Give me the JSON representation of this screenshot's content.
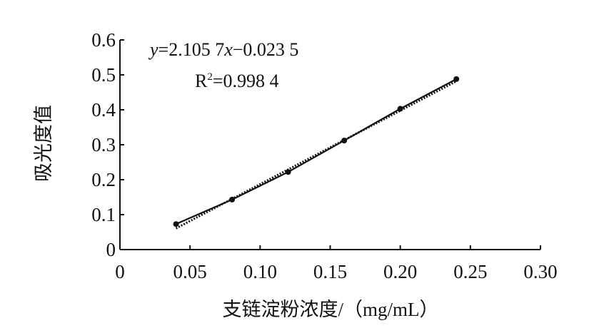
{
  "chart_data": {
    "type": "scatter",
    "title": "",
    "xlabel": "支链淀粉浓度/（mg/mL）",
    "ylabel": "吸光度值",
    "xlim": [
      0,
      0.3
    ],
    "ylim": [
      0,
      0.6
    ],
    "x_ticks": [
      "0",
      "0.05",
      "0.10",
      "0.15",
      "0.20",
      "0.25",
      "0.30"
    ],
    "y_ticks": [
      "0",
      "0.1",
      "0.2",
      "0.3",
      "0.4",
      "0.5",
      "0.6"
    ],
    "grid": false,
    "legend": "none",
    "series": [
      {
        "x": [
          0.04,
          0.08,
          0.12,
          0.16,
          0.2,
          0.24
        ],
        "y": [
          0.073,
          0.143,
          0.222,
          0.312,
          0.403,
          0.488
        ],
        "marker": "circle",
        "line": "solid"
      }
    ],
    "fit_line": {
      "slope": 2.1057,
      "intercept": -0.0235,
      "x_range": [
        0.04,
        0.24
      ],
      "style": "dotted"
    },
    "annotations": {
      "equation": {
        "y_var": "y",
        "eq": "=2.105 7",
        "x_var": "x",
        "rest": "−0.023 5"
      },
      "r2": {
        "r": "R",
        "sup": "2",
        "value": "=0.998 4"
      }
    },
    "colors": {
      "line": "#111111",
      "marker": "#111111",
      "axis": "#111111"
    }
  }
}
